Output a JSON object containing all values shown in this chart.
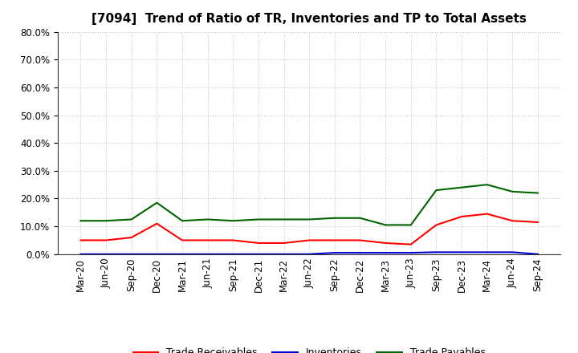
{
  "title": "[7094]  Trend of Ratio of TR, Inventories and TP to Total Assets",
  "x_labels": [
    "Mar-20",
    "Jun-20",
    "Sep-20",
    "Dec-20",
    "Mar-21",
    "Jun-21",
    "Sep-21",
    "Dec-21",
    "Mar-22",
    "Jun-22",
    "Sep-22",
    "Dec-22",
    "Mar-23",
    "Jun-23",
    "Sep-23",
    "Dec-23",
    "Mar-24",
    "Jun-24",
    "Sep-24"
  ],
  "trade_receivables": [
    5.0,
    5.0,
    6.0,
    11.0,
    5.0,
    5.0,
    5.0,
    4.0,
    4.0,
    5.0,
    5.0,
    5.0,
    4.0,
    3.5,
    10.5,
    13.5,
    14.5,
    12.0,
    11.5
  ],
  "inventories": [
    0.0,
    0.0,
    0.0,
    0.0,
    0.0,
    0.0,
    0.0,
    0.0,
    0.0,
    0.0,
    0.5,
    0.5,
    0.5,
    0.5,
    0.7,
    0.7,
    0.7,
    0.7,
    0.0
  ],
  "trade_payables": [
    12.0,
    12.0,
    12.5,
    18.5,
    12.0,
    12.5,
    12.0,
    12.5,
    12.5,
    12.5,
    13.0,
    13.0,
    10.5,
    10.5,
    23.0,
    24.0,
    25.0,
    22.5,
    22.0
  ],
  "ylim": [
    0,
    80
  ],
  "yticks": [
    0,
    10,
    20,
    30,
    40,
    50,
    60,
    70,
    80
  ],
  "color_tr": "#ff0000",
  "color_inv": "#0000cc",
  "color_tp": "#006400",
  "background_color": "#ffffff",
  "grid_color": "#bbbbbb",
  "legend_labels": [
    "Trade Receivables",
    "Inventories",
    "Trade Payables"
  ],
  "title_fontsize": 11,
  "tick_fontsize": 8.5,
  "legend_fontsize": 9
}
